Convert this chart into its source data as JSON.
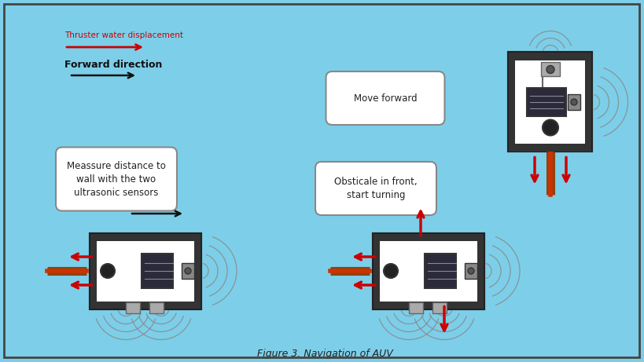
{
  "bg_color": "#7DCFE9",
  "title": "Figure 3. Navigation of AUV",
  "border_color": "#444444",
  "legend_red_label": "Thruster water displacement",
  "legend_black_label": "Forward direction",
  "box1_text": "Move forward",
  "box2_text": "Meassure distance to\nwall with the two\nultrasonic sensors",
  "box3_text": "Obsticale in front,\nstart turning",
  "red_color": "#CC0000",
  "black_color": "#111111",
  "sonar_color": "#888888",
  "robot_frame_color": "#222222",
  "robot_fill_color": "#E8E8E8",
  "robot_dark_color": "#333333",
  "robot_mid_color": "#666666"
}
